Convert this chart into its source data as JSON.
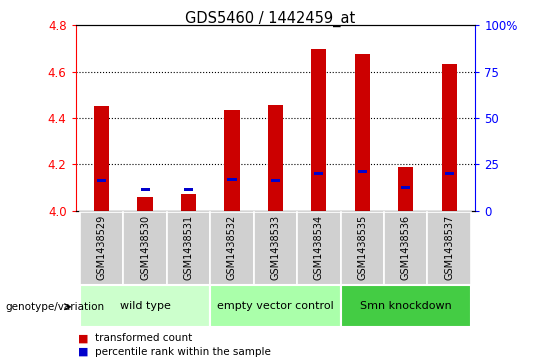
{
  "title": "GDS5460 / 1442459_at",
  "samples": [
    "GSM1438529",
    "GSM1438530",
    "GSM1438531",
    "GSM1438532",
    "GSM1438533",
    "GSM1438534",
    "GSM1438535",
    "GSM1438536",
    "GSM1438537"
  ],
  "red_values": [
    4.45,
    4.06,
    4.07,
    4.435,
    4.455,
    4.7,
    4.675,
    4.19,
    4.635
  ],
  "blue_values": [
    4.13,
    4.09,
    4.09,
    4.135,
    4.13,
    4.16,
    4.17,
    4.1,
    4.16
  ],
  "base": 4.0,
  "ylim": [
    4.0,
    4.8
  ],
  "yticks_left": [
    4.0,
    4.2,
    4.4,
    4.6,
    4.8
  ],
  "yticks_right": [
    0,
    25,
    50,
    75,
    100
  ],
  "groups": [
    {
      "label": "wild type",
      "indices": [
        0,
        1,
        2
      ],
      "color": "#ccffcc"
    },
    {
      "label": "empty vector control",
      "indices": [
        3,
        4,
        5
      ],
      "color": "#aaffaa"
    },
    {
      "label": "Smn knockdown",
      "indices": [
        6,
        7,
        8
      ],
      "color": "#44cc44"
    }
  ],
  "bar_width": 0.35,
  "red_color": "#cc0000",
  "blue_color": "#0000cc",
  "sample_bg": "#d0d0d0",
  "legend_red": "transformed count",
  "legend_blue": "percentile rank within the sample",
  "genotype_label": "genotype/variation"
}
